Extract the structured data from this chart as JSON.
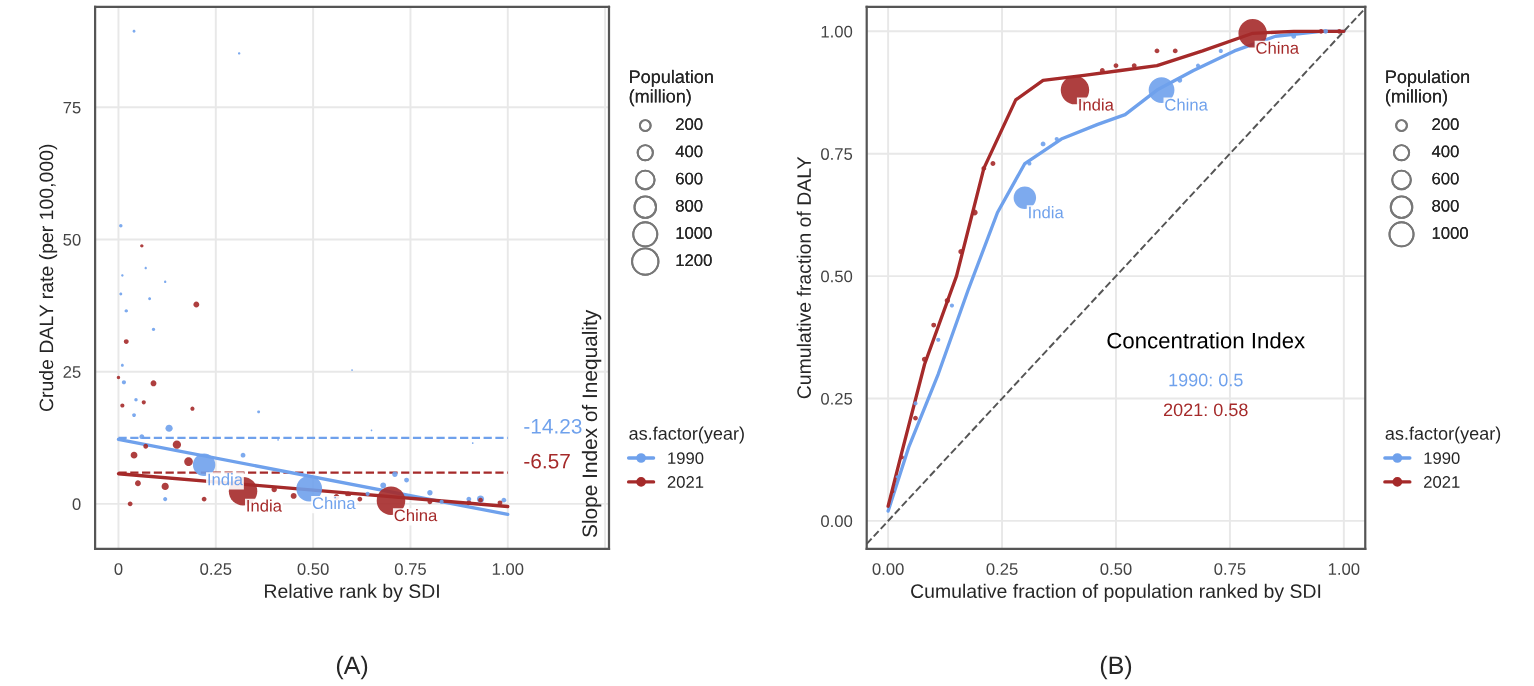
{
  "chart_data": [
    {
      "type": "bubble",
      "xlabel": "Relative rank by SDI",
      "ylabel": "Crude DALY rate (per 100,000)",
      "y2label": "Slope Index of Inequality",
      "legend": "right",
      "legend_title": "as.factor(year)",
      "size_legend": [
        200,
        400,
        600,
        800,
        1000,
        1200
      ],
      "annotations": [
        "(A)",
        "Population\n(million)",
        "-14.23",
        "-6.57"
      ],
      "xlim": [
        -0.06,
        1.26
      ],
      "ylim": [
        -8.5,
        94
      ],
      "xticks": [
        0,
        0.25,
        {
          "value": 0.5,
          "label": "0.50"
        },
        0.75,
        {
          "value": 1.0,
          "label": "1.00"
        },
        {
          "value": 1.25,
          "label": null
        }
      ],
      "yticks": [
        0,
        25,
        50,
        75
      ],
      "grid": true,
      "ref_lines": [
        {
          "axis": "y",
          "value": 12.5,
          "color": "#6fa1ec",
          "line_style": "dashed"
        },
        {
          "axis": "y",
          "value": 5.9,
          "color": "#a52a2a",
          "line_style": "dashed"
        }
      ],
      "series": [
        {
          "name": "1990",
          "color": "#6fa1ec",
          "x": [
            0.04,
            0.31,
            0.006,
            0.006,
            0.01,
            0.02,
            0.07,
            0.08,
            0.12,
            0.09,
            0.01,
            0.014,
            0.045,
            0.04,
            0.13,
            0.36,
            0.6,
            0.06,
            0.22,
            0.49,
            0.32,
            0.64,
            0.68,
            0.71,
            0.74,
            0.8,
            0.9,
            0.93,
            0.99,
            0.65,
            0.91,
            0.41,
            0.12,
            0.83
          ],
          "values": [
            89.4,
            85.2,
            52.6,
            39.7,
            43.2,
            36.5,
            44.6,
            38.8,
            42,
            33,
            26.2,
            23,
            19.7,
            16.8,
            14.3,
            17.4,
            25.3,
            12.7,
            7.4,
            2.9,
            9.2,
            1.9,
            3.5,
            5.6,
            4.5,
            2.1,
            0.9,
            0.9,
            0.7,
            13.9,
            11.5,
            12.1,
            0.9,
            0.4
          ],
          "sizes": [
            15,
            10,
            20,
            15,
            10,
            20,
            10,
            15,
            10,
            20,
            15,
            30,
            20,
            25,
            90,
            15,
            5,
            40,
            870,
            1150,
            40,
            30,
            60,
            50,
            40,
            50,
            40,
            90,
            40,
            5,
            5,
            5,
            30,
            30
          ],
          "value_labels": [
            null,
            null,
            null,
            null,
            null,
            null,
            null,
            null,
            null,
            null,
            null,
            null,
            null,
            null,
            null,
            null,
            null,
            null,
            "India",
            "China",
            null,
            null,
            null,
            null,
            null,
            null,
            null,
            null,
            null,
            null,
            null,
            null,
            null,
            null
          ]
        },
        {
          "name": "2021",
          "color": "#a52a2a",
          "x": [
            0.06,
            0.2,
            0.02,
            0.09,
            0.0,
            0.01,
            0.065,
            0.19,
            0.07,
            0.15,
            0.04,
            0.18,
            0.32,
            0.12,
            0.05,
            0.03,
            0.22,
            0.45,
            0.59,
            0.7,
            0.8,
            0.9,
            0.98,
            0.93,
            0.4,
            0.56,
            0.62
          ],
          "values": [
            48.8,
            37.7,
            30.7,
            22.8,
            23.9,
            18.6,
            19.2,
            18,
            10.9,
            11.2,
            9.2,
            8,
            2.4,
            3.3,
            3.9,
            0,
            0.9,
            1.5,
            1.8,
            0.6,
            0.4,
            0.2,
            0.2,
            0.7,
            2.7,
            1.3,
            0.9
          ],
          "sizes": [
            20,
            60,
            40,
            60,
            20,
            30,
            30,
            30,
            40,
            120,
            80,
            130,
            1400,
            90,
            60,
            40,
            40,
            60,
            60,
            1410,
            40,
            40,
            40,
            40,
            50,
            60,
            40
          ],
          "value_labels": [
            null,
            null,
            null,
            null,
            null,
            null,
            null,
            null,
            null,
            null,
            null,
            null,
            "India",
            null,
            null,
            null,
            null,
            null,
            null,
            "China",
            null,
            null,
            null,
            null,
            null,
            null,
            null
          ]
        },
        {
          "type": "line",
          "color": "#6fa1ec",
          "x": [
            0,
            1
          ],
          "values": [
            12.2,
            -2
          ]
        },
        {
          "type": "line",
          "color": "#a52a2a",
          "x": [
            0,
            1
          ],
          "values": [
            5.7,
            -0.5
          ]
        }
      ]
    },
    {
      "type": "bubble",
      "xlabel": "Cumulative fraction of population ranked by SDI",
      "ylabel": "Cumulative fraction of DALY",
      "legend": "right",
      "legend_title": "as.factor(year)",
      "size_legend": [
        200,
        400,
        600,
        800,
        1000
      ],
      "annotations": [
        "(B)",
        "Population\n(million)",
        "Concentration Index",
        "1990: 0.5",
        "2021: 0.58"
      ],
      "xlim": [
        -0.047,
        1.047
      ],
      "ylim": [
        -0.057,
        1.05
      ],
      "xticks": [
        {
          "value": 0,
          "label": "0.00"
        },
        0.25,
        {
          "value": 0.5,
          "label": "0.50"
        },
        0.75,
        {
          "value": 1,
          "label": "1.00"
        }
      ],
      "yticks": [
        {
          "value": 0,
          "label": "0.00"
        },
        0.25,
        {
          "value": 0.5,
          "label": "0.50"
        },
        0.75,
        {
          "value": 1,
          "label": "1.00"
        }
      ],
      "grid": true,
      "series": [
        {
          "type": "line",
          "color": "#555555",
          "line_style": "dashed",
          "x": [
            -0.047,
            1.047
          ],
          "values": [
            -0.047,
            1.047
          ]
        },
        {
          "type": "line",
          "color": "#6fa1ec",
          "x": [
            0,
            0.045,
            0.11,
            0.175,
            0.24,
            0.3,
            0.38,
            0.46,
            0.52,
            0.59,
            0.67,
            0.76,
            0.85,
            0.95,
            1
          ],
          "values": [
            0.02,
            0.15,
            0.3,
            0.47,
            0.63,
            0.73,
            0.78,
            0.81,
            0.83,
            0.88,
            0.92,
            0.96,
            0.99,
            1.0,
            1.0
          ]
        },
        {
          "type": "line",
          "color": "#a52a2a",
          "x": [
            0,
            0.03,
            0.08,
            0.15,
            0.21,
            0.28,
            0.34,
            0.43,
            0.51,
            0.59,
            0.69,
            0.8,
            0.89,
            1
          ],
          "values": [
            0.03,
            0.14,
            0.32,
            0.5,
            0.72,
            0.86,
            0.9,
            0.91,
            0.92,
            0.93,
            0.96,
            0.996,
            1.0,
            1.0
          ]
        },
        {
          "name": "1990",
          "color": "#6fa1ec",
          "x": [
            0.3,
            0.6,
            0.02,
            0.06,
            0.11,
            0.14,
            0.31,
            0.34,
            0.37,
            0.64,
            0.68,
            0.73,
            0.89,
            0.96
          ],
          "values": [
            0.66,
            0.88,
            0.09,
            0.24,
            0.37,
            0.44,
            0.73,
            0.77,
            0.78,
            0.9,
            0.93,
            0.96,
            0.99,
            1.0
          ],
          "sizes": [
            870,
            1150,
            20,
            30,
            30,
            30,
            30,
            40,
            30,
            40,
            30,
            30,
            40,
            40
          ],
          "value_labels": [
            "India",
            "China",
            null,
            null,
            null,
            null,
            null,
            null,
            null,
            null,
            null,
            null,
            null,
            null
          ]
        },
        {
          "name": "2021",
          "color": "#a52a2a",
          "x": [
            0.41,
            0.8,
            0.01,
            0.03,
            0.06,
            0.08,
            0.1,
            0.13,
            0.16,
            0.19,
            0.21,
            0.23,
            0.47,
            0.5,
            0.54,
            0.59,
            0.63,
            0.95,
            0.99
          ],
          "values": [
            0.88,
            0.996,
            0.06,
            0.13,
            0.21,
            0.33,
            0.4,
            0.45,
            0.55,
            0.63,
            0.72,
            0.73,
            0.92,
            0.93,
            0.93,
            0.96,
            0.96,
            1.0,
            1.0
          ],
          "sizes": [
            1400,
            1410,
            20,
            30,
            40,
            50,
            40,
            50,
            50,
            60,
            40,
            40,
            40,
            40,
            40,
            40,
            40,
            40,
            40
          ],
          "value_labels": [
            "India",
            "China",
            null,
            null,
            null,
            null,
            null,
            null,
            null,
            null,
            null,
            null,
            null,
            null,
            null,
            null,
            null,
            null,
            null
          ]
        }
      ]
    }
  ]
}
